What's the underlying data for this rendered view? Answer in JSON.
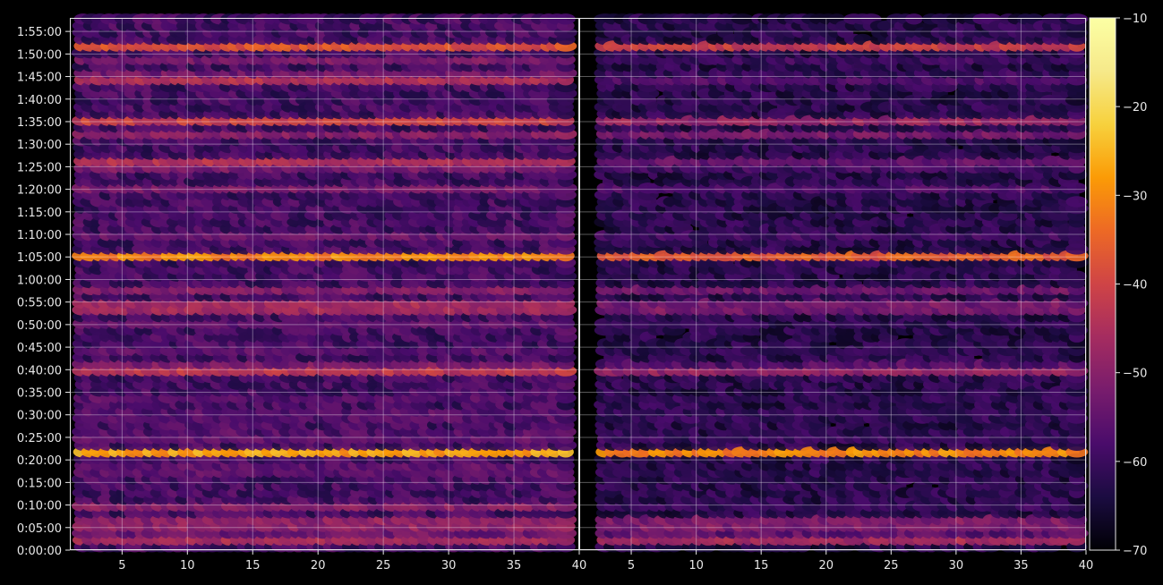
{
  "chart_data": {
    "type": "heatmap",
    "colormap": "inferno",
    "background": "#000000",
    "grid": true,
    "panels": [
      {
        "name": "",
        "xlim": [
          1,
          40
        ],
        "xticks": [
          5,
          10,
          15,
          20,
          25,
          30,
          35,
          40
        ]
      },
      {
        "name": "",
        "xlim": [
          1,
          40
        ],
        "xticks": [
          5,
          10,
          15,
          20,
          25,
          30,
          35,
          40
        ]
      }
    ],
    "y_axis": {
      "ylim_seconds": [
        0,
        7080
      ],
      "tick_labels": [
        "0:00:00",
        "0:05:00",
        "0:10:00",
        "0:15:00",
        "0:20:00",
        "0:25:00",
        "0:30:00",
        "0:35:00",
        "0:40:00",
        "0:45:00",
        "0:50:00",
        "0:55:00",
        "1:00:00",
        "1:05:00",
        "1:10:00",
        "1:15:00",
        "1:20:00",
        "1:25:00",
        "1:30:00",
        "1:35:00",
        "1:40:00",
        "1:45:00",
        "1:50:00",
        "1:55:00"
      ]
    },
    "colorbar": {
      "min": -70,
      "max": -10,
      "ticks": [
        -70,
        -60,
        -50,
        -40,
        -30,
        -20,
        -10
      ],
      "tick_labels": [
        "−70",
        "−60",
        "−50",
        "−40",
        "−30",
        "−20",
        "−10"
      ]
    },
    "bands": [
      {
        "t": 170,
        "left": -33,
        "right": -30
      },
      {
        "t": 360,
        "left": -32,
        "right": -31
      },
      {
        "t": 600,
        "left": -47,
        "right": -60
      },
      {
        "t": 1080,
        "left": -50,
        "right": -62
      },
      {
        "t": 1300,
        "left": -25,
        "right": -28
      },
      {
        "t": 1520,
        "left": -50,
        "right": -58
      },
      {
        "t": 1800,
        "left": -52,
        "right": -58
      },
      {
        "t": 2050,
        "left": -55,
        "right": -60
      },
      {
        "t": 2420,
        "left": -27,
        "right": -34
      },
      {
        "t": 2640,
        "left": -55,
        "right": -62
      },
      {
        "t": 3000,
        "left": -54,
        "right": -62
      },
      {
        "t": 3240,
        "left": -24,
        "right": -34
      },
      {
        "t": 3480,
        "left": -48,
        "right": -50
      },
      {
        "t": 3910,
        "left": -28,
        "right": -34
      },
      {
        "t": 4200,
        "left": -52,
        "right": -58
      },
      {
        "t": 4800,
        "left": -50,
        "right": -55
      },
      {
        "t": 5140,
        "left": -30,
        "right": -46
      },
      {
        "t": 5530,
        "left": -50,
        "right": -52
      },
      {
        "t": 5720,
        "left": -40,
        "right": -47
      },
      {
        "t": 6290,
        "left": -30,
        "right": -52
      },
      {
        "t": 6550,
        "left": -48,
        "right": -58
      },
      {
        "t": 6700,
        "left": -36,
        "right": -40
      }
    ]
  }
}
